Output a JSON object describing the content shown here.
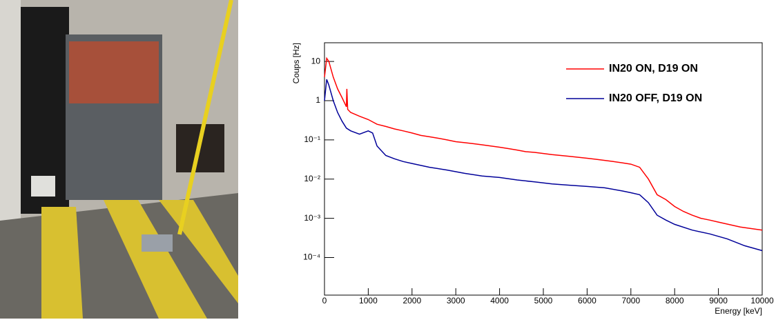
{
  "chart_data": {
    "type": "line",
    "log_y": true,
    "legend": "upper right",
    "xlabel": "Energy [keV]",
    "ylabel": "Coups [Hz]",
    "xlim": [
      0,
      10000
    ],
    "xticks": [
      0,
      1000,
      2000,
      3000,
      4000,
      5000,
      6000,
      7000,
      8000,
      9000,
      10000
    ],
    "ylim": [
      1.1e-05,
      30
    ],
    "yticks": [
      {
        "value": 10,
        "label": "10"
      },
      {
        "value": 1,
        "label": "1"
      },
      {
        "value": 0.1,
        "label": "10⁻¹"
      },
      {
        "value": 0.01,
        "label": "10⁻²"
      },
      {
        "value": 0.001,
        "label": "10⁻³"
      },
      {
        "value": 0.0001,
        "label": "10⁻⁴"
      }
    ],
    "series": [
      {
        "name": "IN20 ON, D19 ON",
        "color": "#ff0000",
        "x": [
          0,
          50,
          100,
          200,
          300,
          400,
          500,
          511,
          530,
          600,
          800,
          1000,
          1200,
          1400,
          1600,
          1800,
          2000,
          2200,
          2400,
          2600,
          2800,
          3000,
          3200,
          3400,
          3600,
          3800,
          4000,
          4200,
          4400,
          4600,
          4800,
          5000,
          5200,
          5400,
          5600,
          5800,
          6000,
          6200,
          6400,
          6600,
          6800,
          7000,
          7200,
          7400,
          7600,
          7800,
          8000,
          8200,
          8400,
          8600,
          8800,
          9000,
          9500,
          10000
        ],
        "values": [
          4,
          12,
          10,
          4,
          2,
          1.2,
          0.7,
          2,
          0.6,
          0.5,
          0.4,
          0.33,
          0.25,
          0.22,
          0.19,
          0.17,
          0.15,
          0.13,
          0.12,
          0.11,
          0.1,
          0.09,
          0.085,
          0.08,
          0.075,
          0.07,
          0.065,
          0.06,
          0.055,
          0.05,
          0.048,
          0.045,
          0.042,
          0.04,
          0.038,
          0.036,
          0.034,
          0.032,
          0.03,
          0.028,
          0.026,
          0.024,
          0.02,
          0.01,
          0.004,
          0.003,
          0.002,
          0.0015,
          0.0012,
          0.001,
          0.0009,
          0.0008,
          0.0006,
          0.0005
        ]
      },
      {
        "name": "IN20 OFF, D19 ON",
        "color": "#000099",
        "x": [
          0,
          50,
          100,
          200,
          300,
          400,
          500,
          600,
          800,
          1000,
          1100,
          1200,
          1400,
          1600,
          1800,
          2000,
          2400,
          2800,
          3200,
          3600,
          4000,
          4400,
          4800,
          5200,
          5600,
          6000,
          6400,
          6800,
          7000,
          7200,
          7400,
          7600,
          7800,
          8000,
          8400,
          8800,
          9200,
          9600,
          10000
        ],
        "values": [
          1,
          3.5,
          2.5,
          1,
          0.5,
          0.3,
          0.2,
          0.17,
          0.14,
          0.17,
          0.15,
          0.07,
          0.04,
          0.033,
          0.028,
          0.025,
          0.02,
          0.017,
          0.014,
          0.012,
          0.011,
          0.0095,
          0.0085,
          0.0075,
          0.007,
          0.0065,
          0.006,
          0.005,
          0.0045,
          0.004,
          0.0025,
          0.0012,
          0.0009,
          0.0007,
          0.0005,
          0.0004,
          0.0003,
          0.0002,
          0.00015
        ]
      }
    ]
  }
}
